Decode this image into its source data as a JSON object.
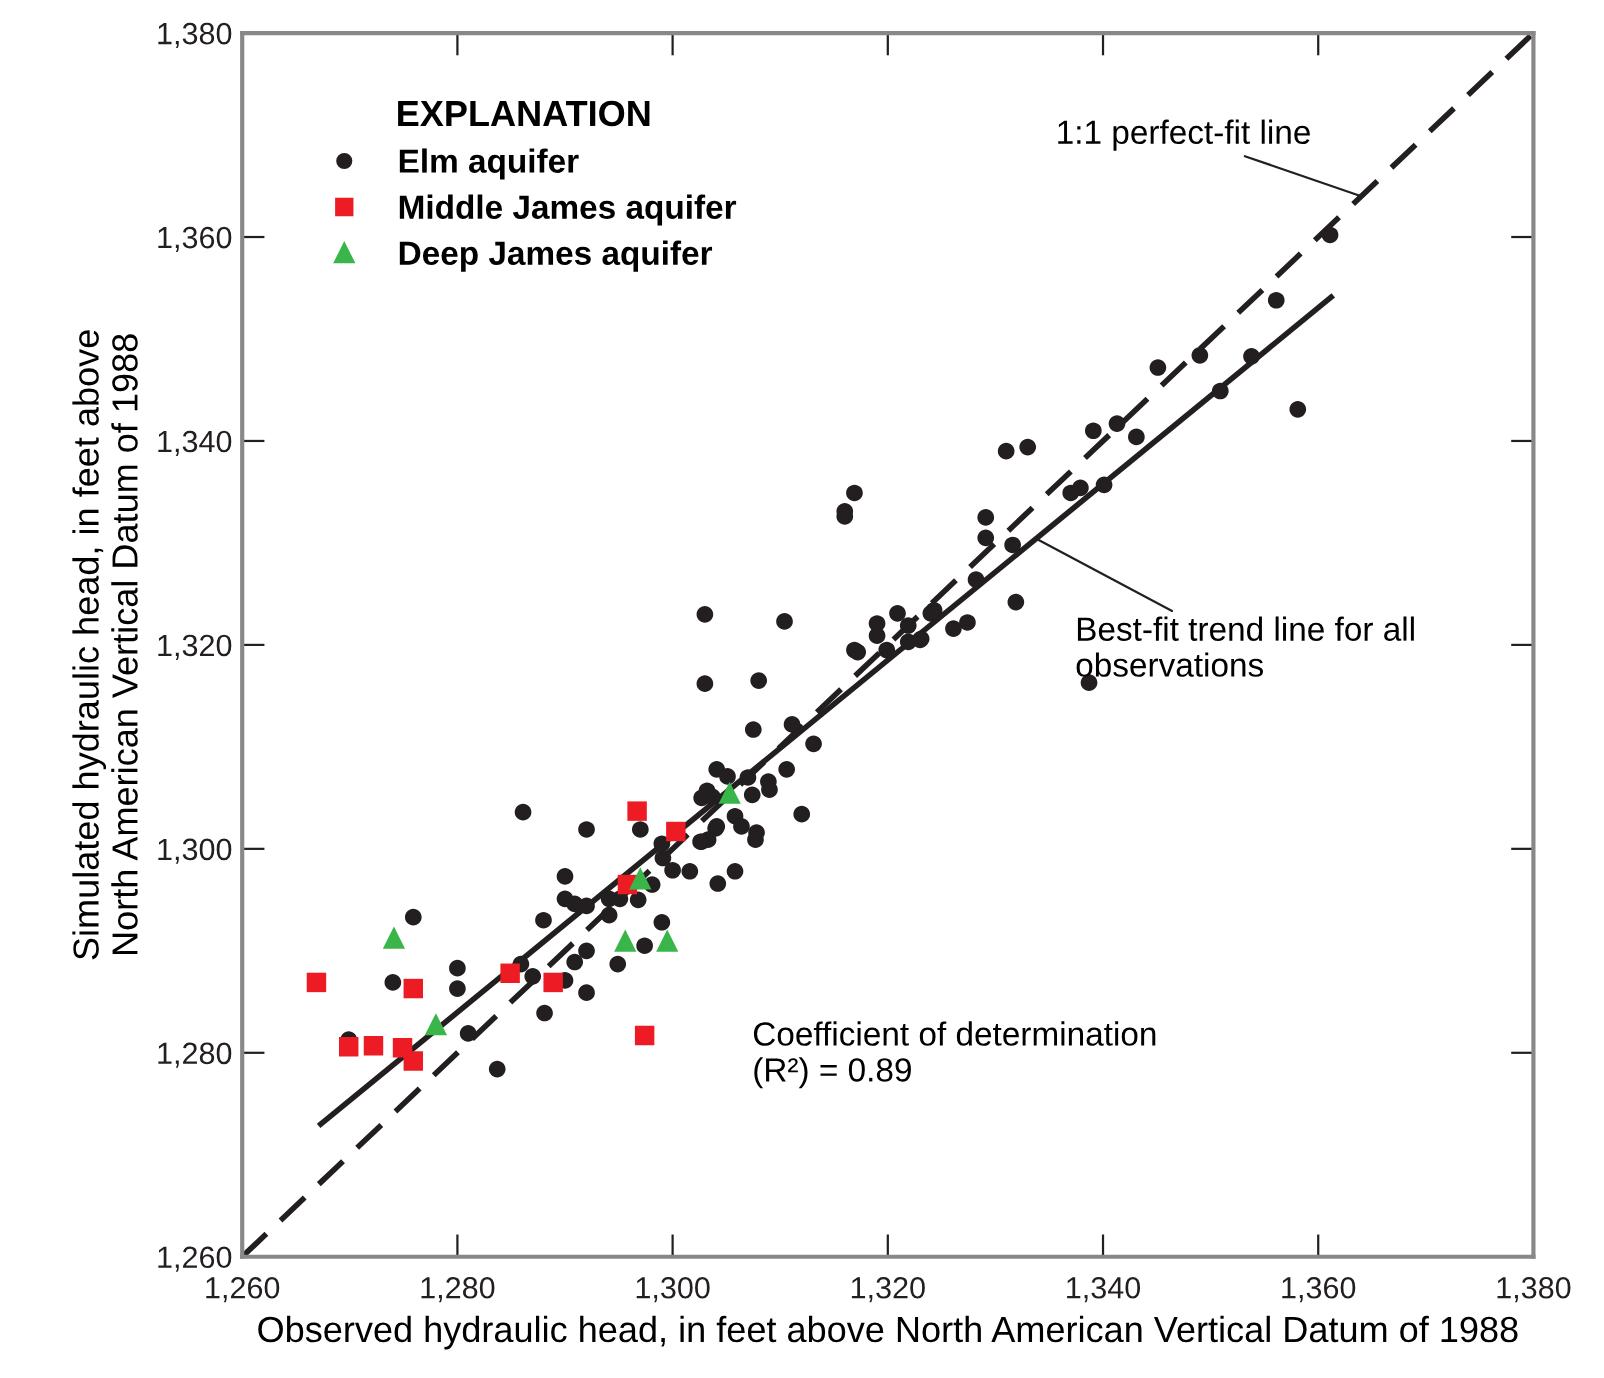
{
  "chart_data": {
    "type": "scatter",
    "xlabel": "Observed hydraulic head, in feet above North American Vertical Datum of 1988",
    "ylabel": "Simulated hydraulic head, in feet above\nNorth American Vertical Datum of 1988",
    "legend_title": "EXPLANATION",
    "legend": "top left",
    "grid": false,
    "xlim": [
      1260,
      1380
    ],
    "ylim": [
      1260,
      1380
    ],
    "xticks": [
      {
        "value": 1260,
        "label": "1,260"
      },
      {
        "value": 1280,
        "label": "1,280"
      },
      {
        "value": 1300,
        "label": "1,300"
      },
      {
        "value": 1320,
        "label": "1,320"
      },
      {
        "value": 1340,
        "label": "1,340"
      },
      {
        "value": 1360,
        "label": "1,360"
      },
      {
        "value": 1380,
        "label": "1,380"
      }
    ],
    "yticks": [
      {
        "value": 1260,
        "label": "1,260"
      },
      {
        "value": 1280,
        "label": "1,280"
      },
      {
        "value": 1300,
        "label": "1,300"
      },
      {
        "value": 1320,
        "label": "1,320"
      },
      {
        "value": 1340,
        "label": "1,340"
      },
      {
        "value": 1360,
        "label": "1,360"
      },
      {
        "value": 1380,
        "label": "1,380"
      }
    ],
    "series": [
      {
        "name": "Elm aquifer",
        "color": "#231f20",
        "marker": "circle",
        "x": [
          1269.9,
          1275.9,
          1274.0,
          1280.0,
          1280.0,
          1281.0,
          1283.7,
          1286.1,
          1288.0,
          1288.1,
          1287.0,
          1285.9,
          1290.0,
          1290.0,
          1290.9,
          1290.0,
          1290.9,
          1292.0,
          1292.0,
          1292.0,
          1292.0,
          1294.1,
          1294.1,
          1294.9,
          1295.1,
          1297.0,
          1296.8,
          1297.4,
          1298.1,
          1299.0,
          1299.1,
          1300.0,
          1301.6,
          1299.0,
          1302.6,
          1303.3,
          1304.2,
          1304.0,
          1302.7,
          1303.0,
          1310.4,
          1303.0,
          1308.0,
          1307.5,
          1311.1,
          1313.1,
          1304.1,
          1305.1,
          1307.0,
          1308.9,
          1309.0,
          1310.6,
          1303.2,
          1303.7,
          1307.4,
          1312.0,
          1304.1,
          1305.8,
          1306.4,
          1307.8,
          1307.7,
          1302.7,
          1305.8,
          1316.9,
          1319.0,
          1319.0,
          1320.9,
          1319.9,
          1321.9,
          1323.0,
          1324.3,
          1316.0,
          1361.1,
          1356.1,
          1358.1,
          1350.9,
          1353.8,
          1349.0,
          1345.1,
          1343.1,
          1341.3,
          1339.1,
          1340.1,
          1337.0,
          1337.9,
          1338.7,
          1331.0,
          1333.0,
          1331.6,
          1329.1,
          1329.1,
          1328.2,
          1331.9,
          1327.4,
          1326.1,
          1323.1,
          1324.0,
          1317.2,
          1321.9,
          1316.9,
          1316.0
        ],
        "values": [
          1281.3,
          1293.3,
          1286.9,
          1288.3,
          1286.3,
          1281.9,
          1278.4,
          1303.6,
          1293.0,
          1283.9,
          1287.5,
          1288.7,
          1297.3,
          1295.1,
          1294.6,
          1287.1,
          1288.9,
          1285.9,
          1290.0,
          1301.9,
          1294.4,
          1295.1,
          1293.5,
          1288.7,
          1295.1,
          1301.9,
          1295.0,
          1290.5,
          1296.5,
          1292.8,
          1299.1,
          1297.9,
          1297.8,
          1300.5,
          1300.7,
          1300.9,
          1296.6,
          1302.0,
          1305.0,
          1323.0,
          1322.3,
          1316.2,
          1316.5,
          1311.7,
          1312.2,
          1310.3,
          1307.8,
          1307.1,
          1307.0,
          1306.6,
          1305.8,
          1307.8,
          1305.7,
          1305.1,
          1305.3,
          1303.4,
          1302.2,
          1303.2,
          1302.2,
          1301.6,
          1300.9,
          1300.7,
          1297.8,
          1319.5,
          1322.1,
          1320.9,
          1323.1,
          1319.5,
          1320.3,
          1320.5,
          1323.4,
          1332.6,
          1360.2,
          1353.8,
          1343.1,
          1344.9,
          1348.3,
          1348.4,
          1347.2,
          1340.4,
          1341.7,
          1341.0,
          1335.7,
          1334.9,
          1335.4,
          1316.3,
          1339.0,
          1339.4,
          1329.8,
          1332.5,
          1330.5,
          1326.4,
          1324.2,
          1322.2,
          1321.6,
          1320.6,
          1323.1,
          1319.3,
          1321.9,
          1334.9,
          1333.1
        ]
      },
      {
        "name": "Middle James aquifer",
        "color": "#ed1c24",
        "marker": "square",
        "x": [
          1266.9,
          1269.9,
          1272.2,
          1274.9,
          1275.9,
          1275.9,
          1284.9,
          1288.9,
          1297.4,
          1296.7,
          1300.3,
          1295.8
        ],
        "values": [
          1286.9,
          1280.6,
          1280.7,
          1280.5,
          1286.3,
          1279.2,
          1287.8,
          1286.9,
          1281.7,
          1303.7,
          1301.7,
          1296.5
        ]
      },
      {
        "name": "Deep James aquifer",
        "color": "#39b54a",
        "marker": "triangle",
        "x": [
          1274.1,
          1278.0,
          1295.6,
          1299.5,
          1297.0,
          1305.3
        ],
        "values": [
          1291.3,
          1282.8,
          1291.0,
          1291.0,
          1297.1,
          1305.5
        ]
      },
      {
        "type": "line",
        "color": "#231f20",
        "line_style": "dashed",
        "x": [
          1260,
          1380
        ],
        "values": [
          1260,
          1380
        ]
      },
      {
        "type": "line",
        "color": "#231f20",
        "line_style": "solid",
        "x": [
          1267.3,
          1361.2
        ],
        "values": [
          1273.0,
          1354.1
        ]
      }
    ],
    "annotations": [
      {
        "text": "1:1 perfect-fit line",
        "x": 1364,
        "y": 1364
      },
      {
        "text": "Best-fit trend line for all\nobservations",
        "x": 1333.8,
        "y": 1330.4
      },
      "Coefficient of determination\n(R²) = 0.89"
    ]
  }
}
